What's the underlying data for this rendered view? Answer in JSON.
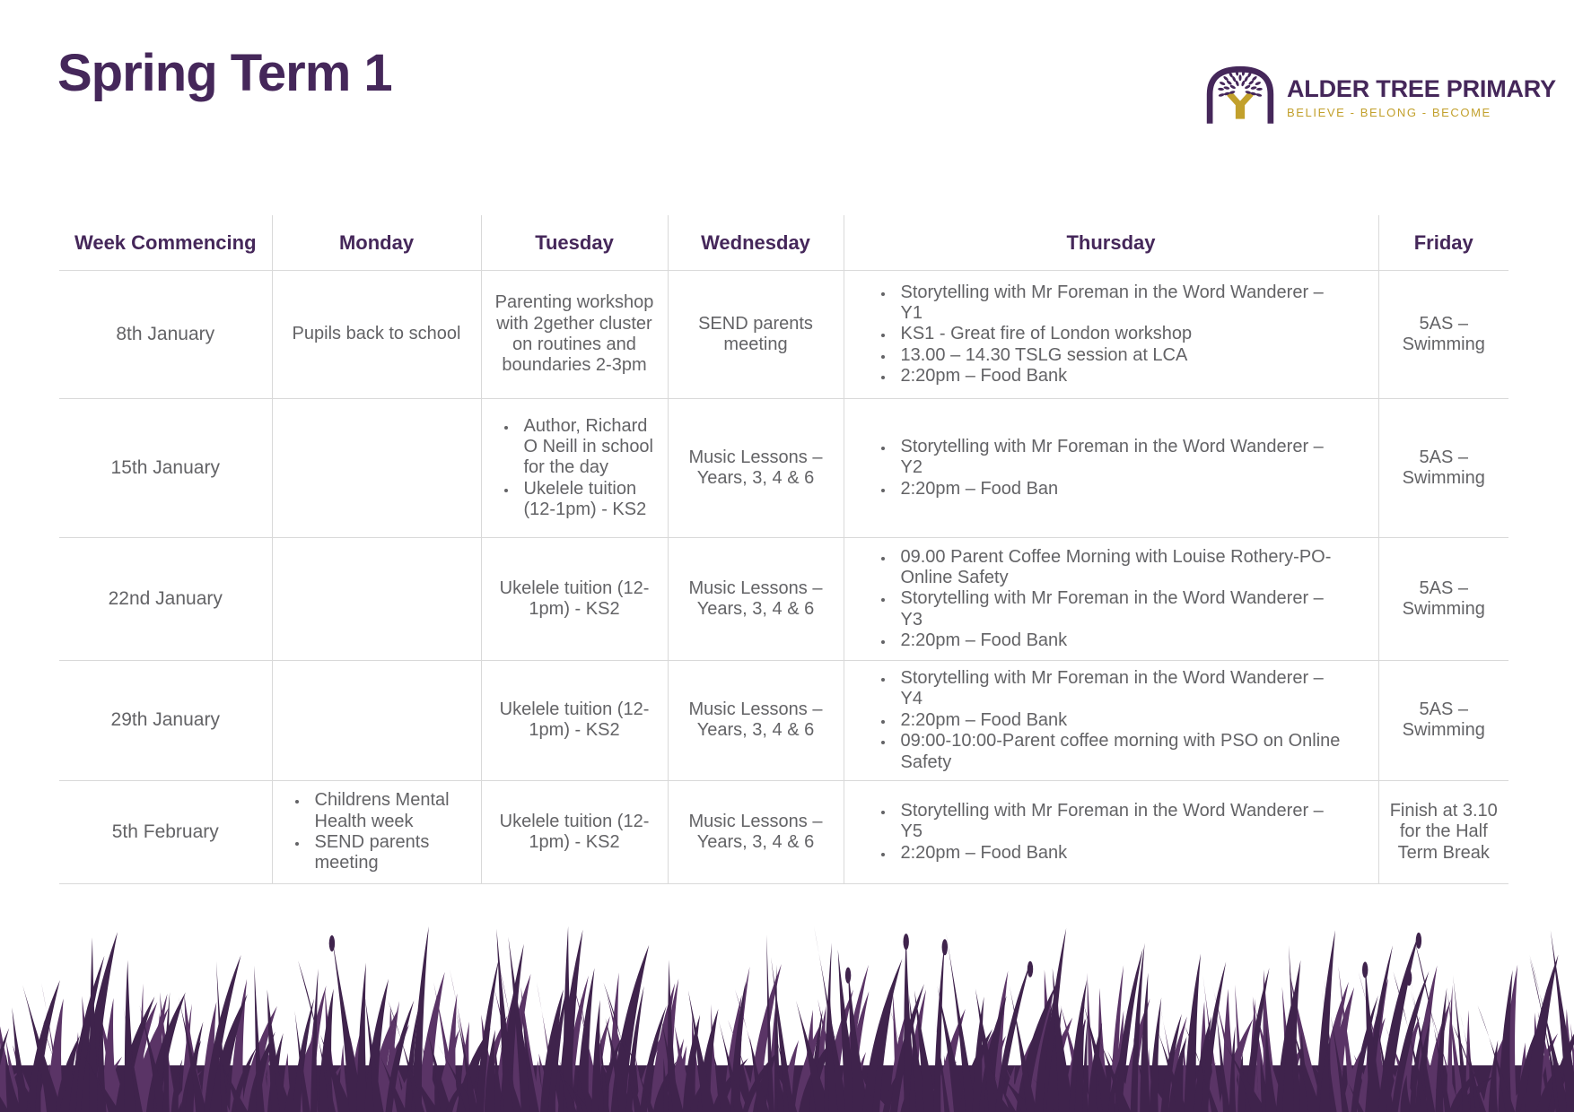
{
  "colors": {
    "purple": "#45275a",
    "gold": "#c2a02c",
    "gray": "#636366",
    "border": "#d9d9d9",
    "grass-dark": "#3f234c",
    "grass-light": "#5a3466"
  },
  "page": {
    "title": "Spring Term 1"
  },
  "logo": {
    "school_name": "ALDER TREE PRIMARY",
    "tagline": "BELIEVE - BELONG - BECOME"
  },
  "table": {
    "headers": [
      "Week Commencing",
      "Monday",
      "Tuesday",
      "Wednesday",
      "Thursday",
      "Friday"
    ],
    "rows": [
      {
        "week": "8th January",
        "monday": "Pupils back to school",
        "tuesday": "Parenting workshop with 2gether cluster on routines and boundaries 2-3pm",
        "wednesday": "SEND parents meeting",
        "thursday": [
          "Storytelling with Mr Foreman in the Word Wanderer – Y1",
          "KS1 - Great fire of London workshop",
          "13.00 – 14.30 TSLG session at LCA",
          "2:20pm – Food Bank"
        ],
        "friday": "5AS – Swimming"
      },
      {
        "week": "15th January",
        "monday": "",
        "tuesday": [
          "Author, Richard O Neill in school for the day",
          "Ukelele tuition (12-1pm) - KS2"
        ],
        "wednesday": "Music Lessons – Years, 3, 4 & 6",
        "thursday": [
          "Storytelling with Mr Foreman in the Word Wanderer – Y2",
          "2:20pm – Food Ban"
        ],
        "friday": "5AS – Swimming"
      },
      {
        "week": "22nd January",
        "monday": "",
        "tuesday": "Ukelele tuition (12-1pm) - KS2",
        "wednesday": "Music Lessons – Years, 3, 4 & 6",
        "thursday": [
          "09.00 Parent Coffee Morning with Louise Rothery-PO-Online Safety",
          "Storytelling with Mr Foreman in the Word Wanderer – Y3",
          "2:20pm – Food Bank"
        ],
        "friday": "5AS – Swimming"
      },
      {
        "week": "29th January",
        "monday": "",
        "tuesday": "Ukelele tuition (12-1pm) - KS2",
        "wednesday": "Music Lessons – Years, 3, 4 & 6",
        "thursday": [
          "Storytelling with Mr Foreman in the Word Wanderer – Y4",
          "2:20pm – Food Bank",
          "09:00-10:00-Parent coffee morning with PSO on Online Safety"
        ],
        "friday": "5AS – Swimming"
      },
      {
        "week": "5th February",
        "monday": [
          "Childrens Mental Health week",
          "SEND parents meeting"
        ],
        "tuesday": "Ukelele tuition (12-1pm) - KS2",
        "wednesday": "Music Lessons – Years, 3, 4 & 6",
        "thursday": [
          "Storytelling with Mr Foreman in the Word Wanderer – Y5",
          "2:20pm – Food Bank"
        ],
        "friday": "Finish at 3.10 for the Half Term Break"
      }
    ]
  }
}
